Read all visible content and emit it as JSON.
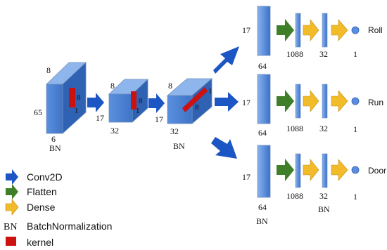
{
  "colors": {
    "box_front": "#4f84d6",
    "box_top": "#8fb6ec",
    "box_side": "#2f62b3",
    "box_stroke": "#6f8fbd",
    "kernel": "#cc1111",
    "conv_arrow": "#1c56c4",
    "flatten_arrow": "#3f7f2a",
    "dense_arrow": "#f2bb2a",
    "output_node": "#5b8de0",
    "text": "#111111"
  },
  "block1": {
    "height": "65",
    "depth": "8",
    "width": "6",
    "norm": "BN",
    "kernel_w": "8",
    "kernel_h": "1"
  },
  "block2": {
    "height": "17",
    "depth": "8",
    "width": "32",
    "kernel_w": "8",
    "kernel_h": "1"
  },
  "block3": {
    "height": "17",
    "depth": "8",
    "width": "32",
    "norm": "BN",
    "kernel_w": "8",
    "kernel_h": "1"
  },
  "heads": [
    {
      "name": "Roll",
      "input_h": "17",
      "input_w": "64",
      "input_norm": "",
      "flat": "1088",
      "dense": "32",
      "dense_norm": "",
      "out": "1"
    },
    {
      "name": "Run",
      "input_h": "17",
      "input_w": "64",
      "input_norm": "",
      "flat": "1088",
      "dense": "32",
      "dense_norm": "",
      "out": "1"
    },
    {
      "name": "Door",
      "input_h": "17",
      "input_w": "64",
      "input_norm": "BN",
      "flat": "1088",
      "dense": "32",
      "dense_norm": "BN",
      "out": "1"
    }
  ],
  "legend": {
    "conv": {
      "icon": "blue-arrow-icon",
      "label": "Conv2D"
    },
    "flatten": {
      "icon": "green-arrow-icon",
      "label": "Flatten"
    },
    "dense": {
      "icon": "yellow-arrow-icon",
      "label": "Dense"
    },
    "bn": {
      "symbol": "BN",
      "label": "BatchNormalization"
    },
    "kernel": {
      "icon": "red-square-icon",
      "label": "kernel"
    }
  }
}
